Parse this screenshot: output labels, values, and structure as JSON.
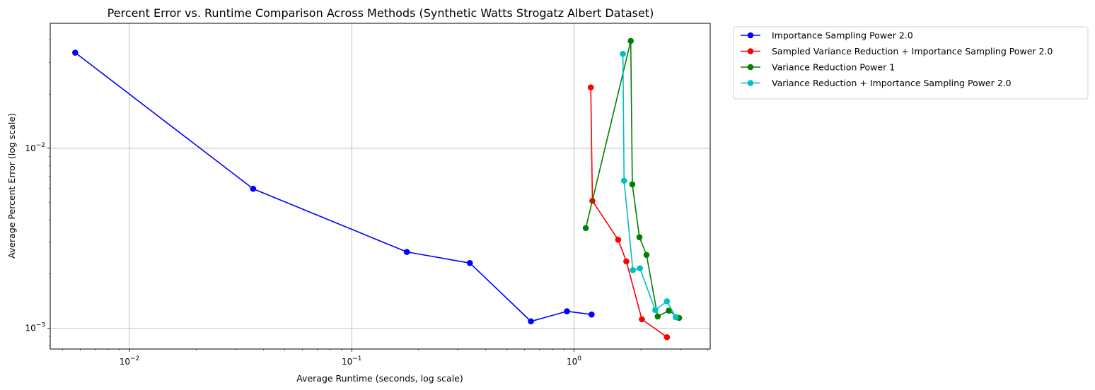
{
  "chart_data": {
    "type": "line",
    "title": "Percent Error vs. Runtime Comparison Across Methods (Synthetic Watts Strogatz Albert Dataset)",
    "xlabel": "Average Runtime (seconds, log scale)",
    "ylabel": "Average Percent Error (log scale)",
    "xscale": "log",
    "yscale": "log",
    "xlim": [
      0.0044,
      4.1
    ],
    "ylim": [
      0.000765,
      0.0495
    ],
    "x_ticks": [
      {
        "value": 0.01,
        "label": "10",
        "exp": "−2"
      },
      {
        "value": 0.1,
        "label": "10",
        "exp": "−1"
      },
      {
        "value": 1,
        "label": "10",
        "exp": "0"
      }
    ],
    "y_ticks": [
      {
        "value": 0.001,
        "label": "10",
        "exp": "−3"
      },
      {
        "value": 0.01,
        "label": "10",
        "exp": "−2"
      }
    ],
    "grid": true,
    "legend_position": "outside top-right",
    "series": [
      {
        "name": "Importance Sampling Power 2.0",
        "color": "#0000ff",
        "x": [
          0.0057,
          0.036,
          0.177,
          0.34,
          0.64,
          0.93,
          1.2
        ],
        "y": [
          0.034,
          0.00595,
          0.00265,
          0.0023,
          0.00109,
          0.00124,
          0.00119
        ]
      },
      {
        "name": "Sampled Variance Reduction + Importance Sampling Power 2.0",
        "color": "#ff0000",
        "x": [
          1.19,
          1.21,
          1.58,
          1.72,
          2.02,
          2.62
        ],
        "y": [
          0.0218,
          0.0051,
          0.0031,
          0.00235,
          0.00112,
          0.00089
        ]
      },
      {
        "name": "Variance Reduction Power 1",
        "color": "#008000",
        "x": [
          1.13,
          1.8,
          1.83,
          1.97,
          2.12,
          2.38,
          2.67,
          2.97
        ],
        "y": [
          0.0036,
          0.0395,
          0.0063,
          0.0032,
          0.00255,
          0.00116,
          0.00125,
          0.00114
        ]
      },
      {
        "name": "Variance Reduction + Importance Sampling Power 2.0",
        "color": "#00bfbf",
        "x": [
          1.66,
          1.68,
          1.84,
          1.98,
          2.32,
          2.62,
          2.87
        ],
        "y": [
          0.0335,
          0.0066,
          0.0021,
          0.00215,
          0.00126,
          0.00141,
          0.00115
        ]
      }
    ]
  }
}
